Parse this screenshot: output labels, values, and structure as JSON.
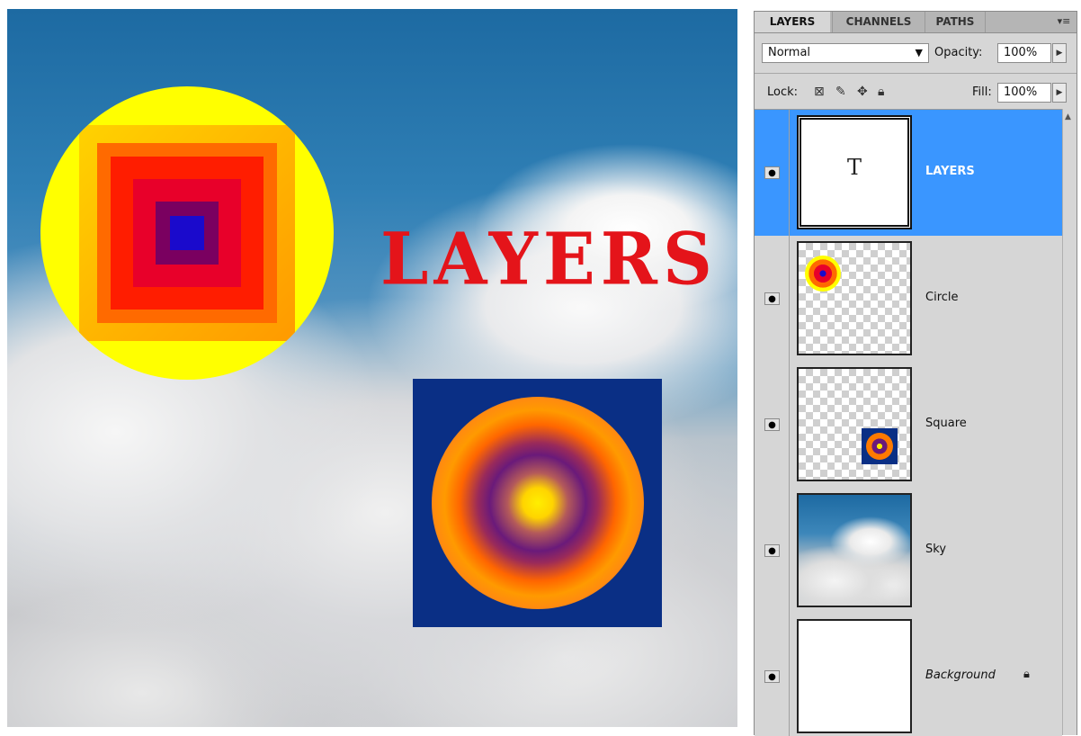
{
  "canvas": {
    "title_text": "LAYERS"
  },
  "panel": {
    "tabs": [
      {
        "label": "LAYERS",
        "active": true
      },
      {
        "label": "CHANNELS",
        "active": false
      },
      {
        "label": "PATHS",
        "active": false
      }
    ],
    "menu_icon": "panel-menu-icon",
    "blend_mode": "Normal",
    "opacity_label": "Opacity:",
    "opacity_value": "100%",
    "lock_label": "Lock:",
    "lock_icons": [
      "lock-transparent-icon",
      "lock-image-icon",
      "lock-position-icon",
      "lock-all-icon"
    ],
    "fill_label": "Fill:",
    "fill_value": "100%",
    "layers": [
      {
        "name": "LAYERS",
        "type": "text",
        "thumb_glyph": "T",
        "selected": true,
        "visible": true
      },
      {
        "name": "Circle",
        "type": "pixel",
        "selected": false,
        "visible": true
      },
      {
        "name": "Square",
        "type": "pixel",
        "selected": false,
        "visible": true
      },
      {
        "name": "Sky",
        "type": "pixel",
        "selected": false,
        "visible": true
      },
      {
        "name": "Background",
        "type": "background",
        "locked": true,
        "selected": false,
        "visible": true
      }
    ]
  },
  "colors": {
    "selection": "#3a96ff",
    "title_red": "#e4141a",
    "panel_bg": "#d6d6d6"
  }
}
